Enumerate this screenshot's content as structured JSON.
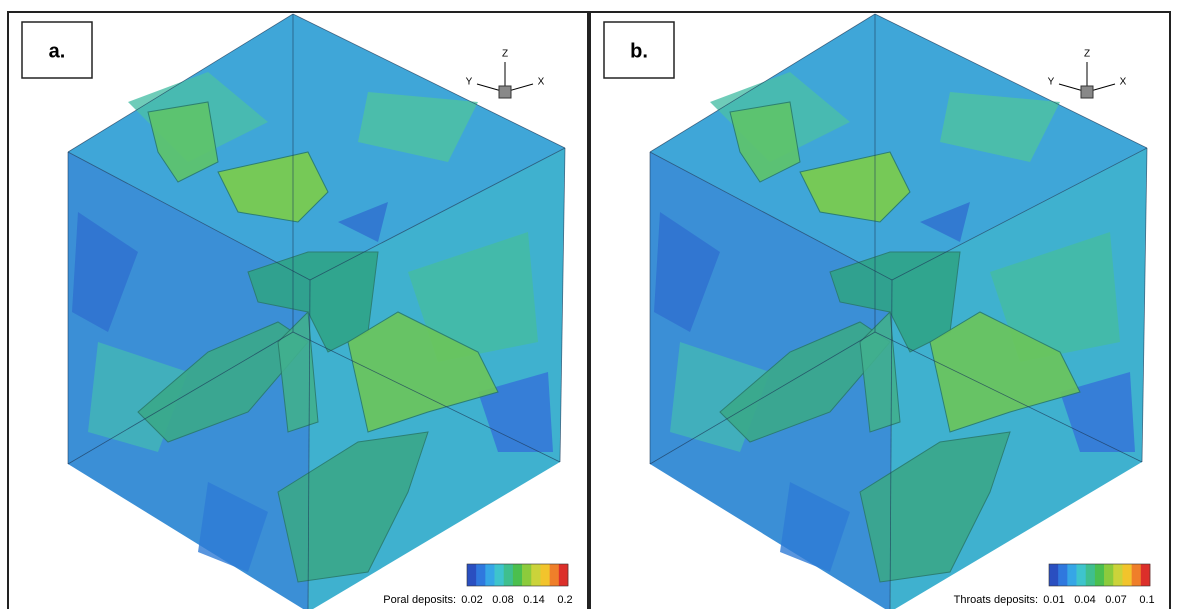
{
  "panels": [
    {
      "label": "a.",
      "axes": {
        "z": "Z",
        "y": "Y",
        "x": "X"
      },
      "legend_title": "Poral deposits:",
      "legend_ticks": [
        "0.02",
        "0.08",
        "0.14",
        "0.2"
      ]
    },
    {
      "label": "b.",
      "axes": {
        "z": "Z",
        "y": "Y",
        "x": "X"
      },
      "legend_title": "Throats deposits:",
      "legend_ticks": [
        "0.01",
        "0.04",
        "0.07",
        "0.1"
      ]
    }
  ]
}
